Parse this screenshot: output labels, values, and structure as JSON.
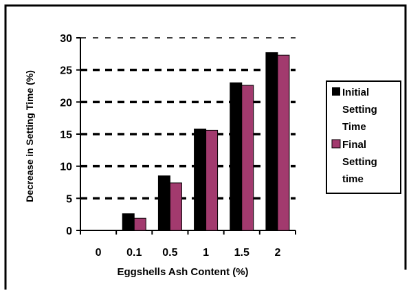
{
  "chart_data": {
    "type": "bar",
    "xlabel": "Eggshells Ash Content (%)",
    "ylabel": "Decrease in Setting Time (%)",
    "categories": [
      "0",
      "0.1",
      "0.5",
      "1",
      "1.5",
      "2"
    ],
    "ylim": [
      0,
      30
    ],
    "yticks": [
      "0",
      "5",
      "10",
      "15",
      "20",
      "25",
      "30"
    ],
    "grid": true,
    "legend_position": "right",
    "series": [
      {
        "name": "Initial Setting Time",
        "legend_lines": [
          "Initial",
          "Setting",
          "Time"
        ],
        "color": "#000000",
        "values": [
          0,
          2.6,
          8.5,
          15.8,
          23.0,
          27.7
        ]
      },
      {
        "name": "Final Setting time",
        "legend_lines": [
          "Final",
          "Setting",
          "time"
        ],
        "color": "#a23a6e",
        "values": [
          0,
          1.9,
          7.4,
          15.6,
          22.6,
          27.3
        ]
      }
    ]
  }
}
